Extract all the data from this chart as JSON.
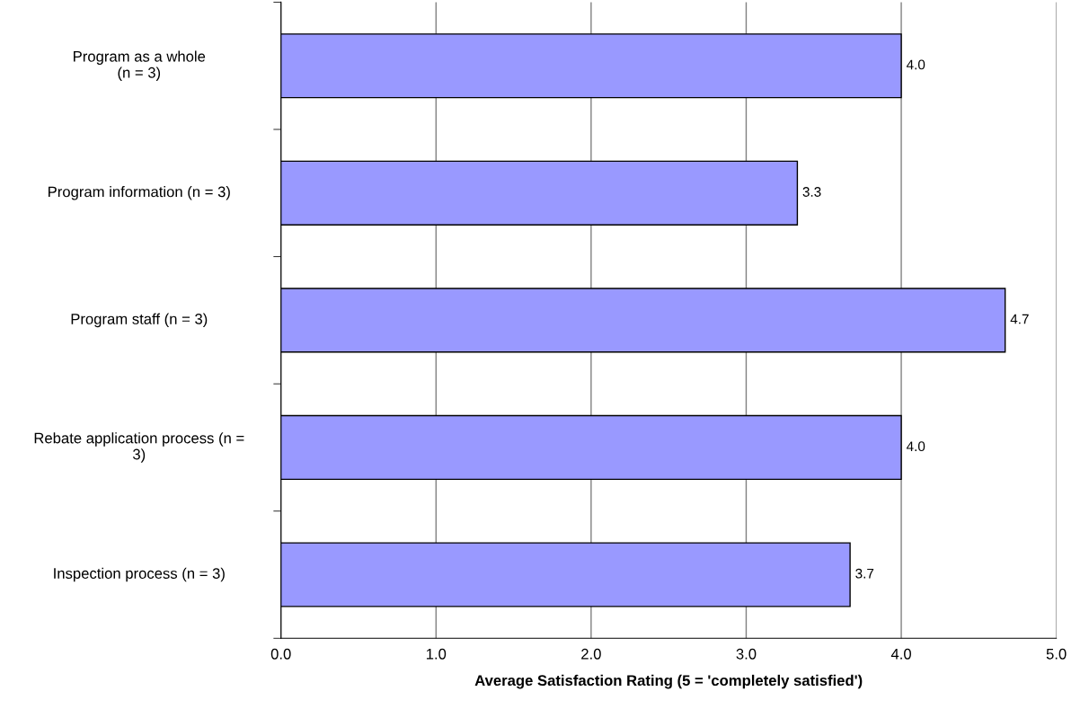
{
  "chart_data": {
    "type": "bar",
    "orientation": "horizontal",
    "xlabel": "Average Satisfaction Rating (5 = 'completely satisfied')",
    "categories": [
      "Program as a whole\n(n = 3)",
      "Program information (n = 3)",
      "Program staff (n = 3)",
      "Rebate application process (n =\n3)",
      "Inspection process (n = 3)"
    ],
    "values": [
      4.0,
      3.33,
      4.67,
      4.0,
      3.67
    ],
    "value_labels": [
      "4.0",
      "3.3",
      "4.7",
      "4.0",
      "3.7"
    ],
    "color": "#9999ff",
    "xlim": [
      0,
      5
    ],
    "xticks": [
      {
        "value": 0,
        "label": "0.0"
      },
      {
        "value": 1,
        "label": "1.0"
      },
      {
        "value": 2,
        "label": "2.0"
      },
      {
        "value": 3,
        "label": "3.0"
      },
      {
        "value": 4,
        "label": "4.0"
      },
      {
        "value": 5,
        "label": "5.0"
      }
    ],
    "grid": "x"
  }
}
